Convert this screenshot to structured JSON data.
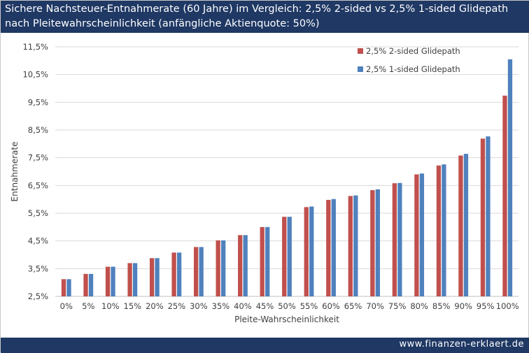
{
  "title_line1": "Sichere Nachsteuer-Entnahmerate (60 Jahre) im Vergleich: 2,5% 2-sided vs 2,5% 1-sided Glidepath",
  "title_line2": "nach Pleitewahrscheinlichkeit (anfängliche Aktienquote: 50%)",
  "footer": "www.finanzen-erklaert.de",
  "colors": {
    "header_bg": "#1f3864",
    "series_a": "#c0504d",
    "series_b": "#4f81bd"
  },
  "chart_data": {
    "type": "bar",
    "title": "Sichere Nachsteuer-Entnahmerate (60 Jahre) im Vergleich: 2,5% 2-sided vs 2,5% 1-sided Glidepath nach Pleitewahrscheinlichkeit (anfängliche Aktienquote: 50%)",
    "xlabel": "Pleite-Wahrscheinlichkeit",
    "ylabel": "Entnahmerate",
    "categories": [
      "0%",
      "5%",
      "10%",
      "15%",
      "20%",
      "25%",
      "30%",
      "35%",
      "40%",
      "45%",
      "50%",
      "55%",
      "60%",
      "65%",
      "70%",
      "75%",
      "80%",
      "85%",
      "90%",
      "95%",
      "100%"
    ],
    "ylim": [
      2.5,
      11.5
    ],
    "yticks": [
      2.5,
      3.5,
      4.5,
      5.5,
      6.5,
      7.5,
      8.5,
      9.5,
      10.5,
      11.5
    ],
    "ytick_labels": [
      "2,5%",
      "3,5%",
      "4,5%",
      "5,5%",
      "6,5%",
      "7,5%",
      "8,5%",
      "9,5%",
      "10,5%",
      "11,5%"
    ],
    "grid": true,
    "legend_position": "top-right",
    "series": [
      {
        "name": "2,5% 2-sided Glidepath",
        "color": "#c0504d",
        "values": [
          3.12,
          3.31,
          3.57,
          3.7,
          3.88,
          4.08,
          4.28,
          4.52,
          4.71,
          5.0,
          5.37,
          5.72,
          5.98,
          6.12,
          6.33,
          6.58,
          6.9,
          7.22,
          7.58,
          8.19,
          9.74
        ]
      },
      {
        "name": "2,5% 1-sided Glidepath",
        "color": "#4f81bd",
        "values": [
          3.12,
          3.31,
          3.57,
          3.7,
          3.88,
          4.08,
          4.28,
          4.52,
          4.71,
          5.0,
          5.37,
          5.74,
          6.01,
          6.14,
          6.36,
          6.59,
          6.93,
          7.26,
          7.64,
          8.27,
          11.05
        ]
      }
    ]
  }
}
